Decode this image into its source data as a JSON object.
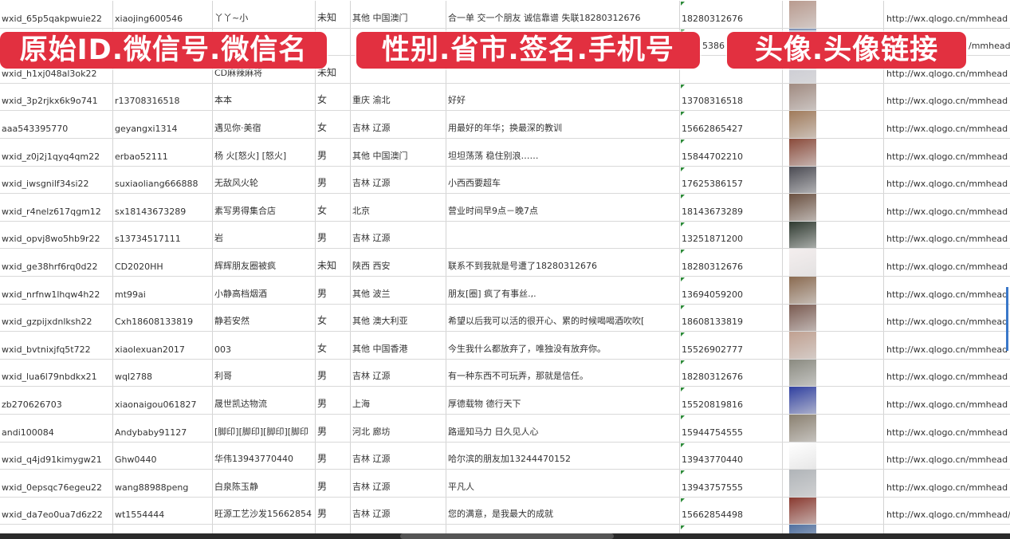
{
  "overlay_labels": [
    "原始ID.微信号.微信名",
    "性别.省市.签名.手机号",
    "头像.头像链接"
  ],
  "rows": [
    {
      "id": "wxid_65p5qakpwuie22",
      "wechat": "xiaojing600546",
      "name": "丫丫~小",
      "gender": "未知",
      "region": "其他 中国澳门",
      "signature": "合一单 交一个朋友 诚信靠谱 失联18280312676",
      "phone": "18280312676",
      "avatar_color": "#b99a8e",
      "link": "http://wx.qlogo.cn/mmhead"
    },
    {
      "id": "",
      "wechat": "",
      "name": "",
      "gender": "",
      "region": "",
      "signature": "",
      "phone": "5386",
      "avatar_color": "#7a8fb5",
      "link": "/mmhead"
    },
    {
      "id": "wxid_h1xj048al3ok22",
      "wechat": "",
      "name": "CD麻辣麻将",
      "gender": "未知",
      "region": "",
      "signature": "",
      "phone": "",
      "avatar_color": "#c9c9d2",
      "link": "http://wx.qlogo.cn/mmhead"
    },
    {
      "id": "wxid_3p2rjkx6k9o741",
      "wechat": "r13708316518",
      "name": "本本",
      "gender": "女",
      "region": "重庆 渝北",
      "signature": "好好",
      "phone": "13708316518",
      "avatar_color": "#a08a80",
      "link": "http://wx.qlogo.cn/mmhead"
    },
    {
      "id": "aaa543395770",
      "wechat": "geyangxi1314",
      "name": "遇见你·美宿",
      "gender": "女",
      "region": "吉林 辽源",
      "signature": "用最好的年华；换最深的教训",
      "phone": "15662865427",
      "avatar_color": "#a07a5a",
      "link": "http://wx.qlogo.cn/mmhead"
    },
    {
      "id": "wxid_z0j2j1qyq4qm22",
      "wechat": "erbao52111",
      "name": "杨 火[怒火] [怒火]",
      "gender": "男",
      "region": "其他 中国澳门",
      "signature": "坦坦荡荡 稳住别浪……",
      "phone": "15844702210",
      "avatar_color": "#8a4a3a",
      "link": "http://wx.qlogo.cn/mmhead"
    },
    {
      "id": "wxid_iwsgnilf34si22",
      "wechat": "suxiaoliang666888",
      "name": "无敌风火轮",
      "gender": "男",
      "region": "吉林 辽源",
      "signature": "小西西要超车",
      "phone": "17625386157",
      "avatar_color": "#4a4a52",
      "link": "http://wx.qlogo.cn/mmhead"
    },
    {
      "id": "wxid_r4nelz617qgm12",
      "wechat": "sx18143673289",
      "name": "素写男得集合店",
      "gender": "女",
      "region": "北京",
      "signature": "营业时间早9点－晚7点",
      "phone": "18143673289",
      "avatar_color": "#6a5040",
      "link": "http://wx.qlogo.cn/mmhead"
    },
    {
      "id": "wxid_opvj8wo5hb9r22",
      "wechat": "s13734517111",
      "name": "岩",
      "gender": "男",
      "region": "吉林 辽源",
      "signature": "",
      "phone": "13251871200",
      "avatar_color": "#2f3a30",
      "link": "http://wx.qlogo.cn/mmhead"
    },
    {
      "id": "wxid_ge38hrf6rq0d22",
      "wechat": "CD2020HH",
      "name": "辉辉朋友圈被疯",
      "gender": "未知",
      "region": "陕西 西安",
      "signature": "联系不到我就是号遭了18280312676",
      "phone": "18280312676",
      "avatar_color": "#f4eeee",
      "link": "http://wx.qlogo.cn/mmhead"
    },
    {
      "id": "wxid_nrfnw1lhqw4h22",
      "wechat": "mt99ai",
      "name": "小静高档烟酒",
      "gender": "男",
      "region": "其他 波兰",
      "signature": "朋友[圈] 疯了有事丝.,.",
      "phone": "13694059200",
      "avatar_color": "#8a6a50",
      "link": "http://wx.qlogo.cn/mmhead"
    },
    {
      "id": "wxid_gzpijxdnlksh22",
      "wechat": "Cxh18608133819",
      "name": "静若安然",
      "gender": "女",
      "region": "其他 澳大利亚",
      "signature": "希望以后我可以活的很开心、累的时候喝喝酒吹吹[",
      "phone": "18608133819",
      "avatar_color": "#7a5a50",
      "link": "http://wx.qlogo.cn/mmhead"
    },
    {
      "id": "wxid_bvtnixjfq5t722",
      "wechat": "xiaolexuan2017",
      "name": "003",
      "gender": "女",
      "region": "其他 中国香港",
      "signature": "今生我什么都放弃了，唯独没有放弃你。",
      "phone": "15526902777",
      "avatar_color": "#c0a090",
      "link": "http://wx.qlogo.cn/mmhead"
    },
    {
      "id": "wxid_lua6l79nbdkx21",
      "wechat": "wql2788",
      "name": "利哥",
      "gender": "男",
      "region": "吉林 辽源",
      "signature": "有一种东西不可玩弄，那就是信任。",
      "phone": "18280312676",
      "avatar_color": "#8a8a80",
      "link": "http://wx.qlogo.cn/mmhead"
    },
    {
      "id": "zb270626703",
      "wechat": "xiaonaigou061827",
      "name": "晟世凯达物流",
      "gender": "男",
      "region": "上海",
      "signature": "厚德载物 德行天下",
      "phone": "15520819816",
      "avatar_color": "#3040a0",
      "link": "http://wx.qlogo.cn/mmhead"
    },
    {
      "id": "andi100084",
      "wechat": "Andybaby91127",
      "name": "[脚印][脚印][脚印][脚印",
      "gender": "男",
      "region": "河北 廊坊",
      "signature": "路遥知马力 日久见人心",
      "phone": "15944754555",
      "avatar_color": "#8a8070",
      "link": "http://wx.qlogo.cn/mmhead"
    },
    {
      "id": "wxid_q4jd91kimygw21",
      "wechat": "Ghw0440",
      "name": "华伟13943770440",
      "gender": "男",
      "region": "吉林 辽源",
      "signature": "哈尔滨的朋友加13244470152",
      "phone": "13943770440",
      "avatar_color": "#ffffff",
      "link": "http://wx.qlogo.cn/mmhead"
    },
    {
      "id": "wxid_0epsqc76egeu22",
      "wechat": "wang88988peng",
      "name": "白泉陈玉静",
      "gender": "男",
      "region": "吉林 辽源",
      "signature": "平凡人",
      "phone": "13943757555",
      "avatar_color": "#b0b4b8",
      "link": "http://wx.qlogo.cn/mmhead"
    },
    {
      "id": "wxid_da7eo0ua7d6z22",
      "wechat": "wt1554444",
      "name": "旺源工艺沙发15662854",
      "gender": "男",
      "region": "吉林 辽源",
      "signature": "您的满意，是我最大的成就",
      "phone": "15662854498",
      "avatar_color": "#8a3a30",
      "link": "http://wx.qlogo.cn/mmhead/"
    },
    {
      "id": "",
      "wechat": "",
      "name": "",
      "gender": "",
      "region": "",
      "signature": "",
      "phone": "",
      "avatar_color": "#5070a0",
      "link": ""
    }
  ],
  "colors": {
    "label_bg": "#e23040",
    "phone_marker": "#2e8b3a"
  }
}
